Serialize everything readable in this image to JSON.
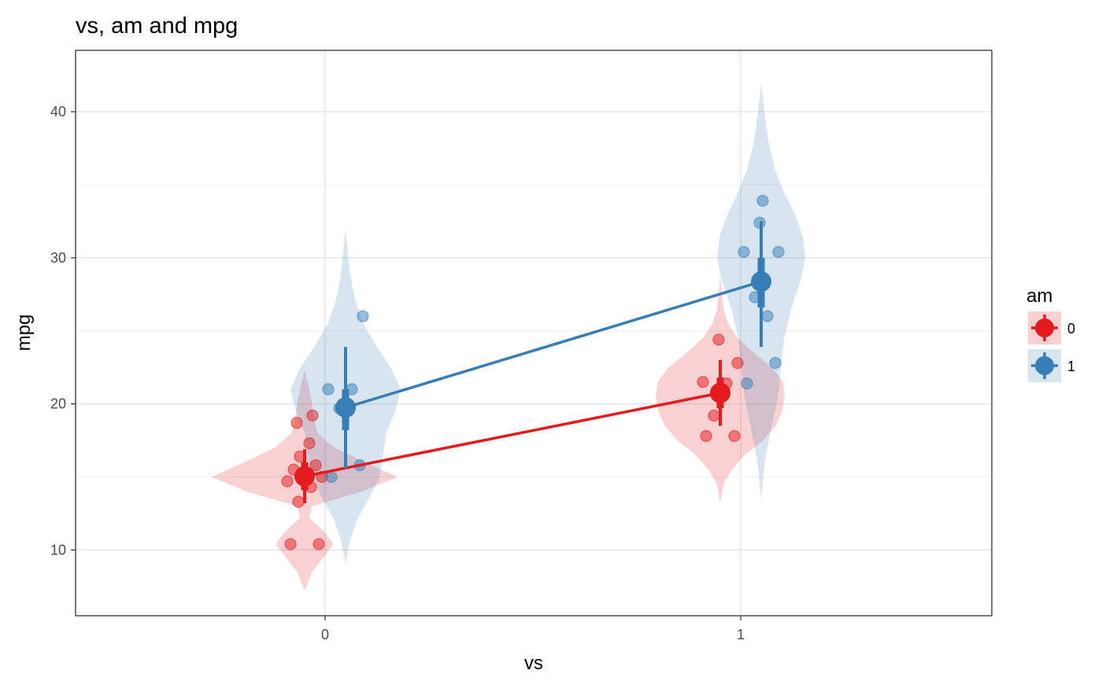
{
  "chart_data": {
    "type": "violin",
    "title": "vs, am and mpg",
    "xlabel": "vs",
    "ylabel": "mpg",
    "categories": [
      "0",
      "1"
    ],
    "ylim": [
      5.5,
      44.2
    ],
    "yticks": [
      10,
      20,
      30,
      40
    ],
    "grid": true,
    "legend": {
      "title": "am",
      "position": "right"
    },
    "series": [
      {
        "name": "0",
        "color": "#e41a1c",
        "groups": [
          {
            "x": "0",
            "mean": 15.05,
            "ci_low": 13.2,
            "ci_high": 16.9,
            "se_low": 14.1,
            "se_high": 16.0,
            "points": [
              10.4,
              10.4,
              13.3,
              14.3,
              14.7,
              15.0,
              15.2,
              15.2,
              15.5,
              15.8,
              16.4,
              17.3,
              18.7,
              19.2
            ],
            "density": [
              [
                7.2,
                0.0
              ],
              [
                8.5,
                0.08
              ],
              [
                9.8,
                0.24
              ],
              [
                10.4,
                0.31
              ],
              [
                11.2,
                0.22
              ],
              [
                12.2,
                0.05
              ],
              [
                13.0,
                0.08
              ],
              [
                14.0,
                0.62
              ],
              [
                15.0,
                1.0
              ],
              [
                16.0,
                0.65
              ],
              [
                17.0,
                0.32
              ],
              [
                18.0,
                0.14
              ],
              [
                19.0,
                0.1
              ],
              [
                20.0,
                0.08
              ],
              [
                21.0,
                0.05
              ],
              [
                22.3,
                0.0
              ]
            ]
          },
          {
            "x": "1",
            "mean": 20.75,
            "ci_low": 18.5,
            "ci_high": 23.0,
            "se_low": 19.7,
            "se_high": 21.8,
            "points": [
              17.8,
              17.8,
              19.2,
              21.4,
              21.5,
              22.8,
              24.4
            ],
            "density": [
              [
                13.2,
                0.0
              ],
              [
                14.5,
                0.05
              ],
              [
                15.5,
                0.18
              ],
              [
                16.5,
                0.38
              ],
              [
                17.5,
                0.66
              ],
              [
                18.5,
                0.86
              ],
              [
                19.5,
                0.96
              ],
              [
                20.5,
                1.0
              ],
              [
                21.5,
                0.97
              ],
              [
                22.5,
                0.8
              ],
              [
                23.5,
                0.52
              ],
              [
                24.5,
                0.27
              ],
              [
                25.5,
                0.12
              ],
              [
                26.5,
                0.05
              ],
              [
                28.7,
                0.0
              ]
            ]
          }
        ]
      },
      {
        "name": "1",
        "color": "#377eb8",
        "groups": [
          {
            "x": "0",
            "mean": 19.75,
            "ci_low": 15.6,
            "ci_high": 23.9,
            "se_low": 18.2,
            "se_high": 21.0,
            "points": [
              15.0,
              15.8,
              19.7,
              21.0,
              21.0,
              26.0
            ],
            "density": [
              [
                9.0,
                0.0
              ],
              [
                10.5,
                0.07
              ],
              [
                12.0,
                0.2
              ],
              [
                13.5,
                0.42
              ],
              [
                15.0,
                0.62
              ],
              [
                16.5,
                0.68
              ],
              [
                18.0,
                0.74
              ],
              [
                19.5,
                0.9
              ],
              [
                21.0,
                1.0
              ],
              [
                22.5,
                0.82
              ],
              [
                24.0,
                0.55
              ],
              [
                25.5,
                0.32
              ],
              [
                27.0,
                0.18
              ],
              [
                28.5,
                0.1
              ],
              [
                30.0,
                0.05
              ],
              [
                32.0,
                0.0
              ]
            ]
          },
          {
            "x": "1",
            "mean": 28.37,
            "ci_low": 23.9,
            "ci_high": 32.5,
            "se_low": 26.6,
            "se_high": 30.0,
            "points": [
              21.4,
              22.8,
              27.3,
              26.0,
              30.4,
              30.4,
              32.4,
              33.9
            ],
            "density": [
              [
                13.4,
                0.0
              ],
              [
                16.0,
                0.08
              ],
              [
                18.5,
                0.24
              ],
              [
                20.5,
                0.38
              ],
              [
                22.5,
                0.45
              ],
              [
                24.5,
                0.52
              ],
              [
                26.5,
                0.68
              ],
              [
                28.5,
                0.9
              ],
              [
                30.0,
                1.0
              ],
              [
                31.5,
                0.94
              ],
              [
                33.0,
                0.76
              ],
              [
                34.5,
                0.52
              ],
              [
                36.0,
                0.32
              ],
              [
                38.0,
                0.16
              ],
              [
                40.0,
                0.07
              ],
              [
                42.0,
                0.0
              ]
            ]
          }
        ]
      }
    ]
  }
}
